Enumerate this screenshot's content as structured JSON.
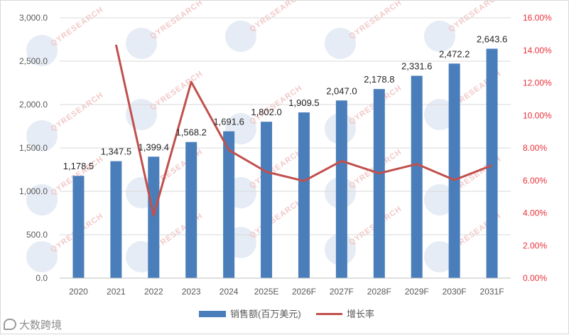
{
  "chart_data": {
    "type": "bar+line",
    "categories": [
      "2020",
      "2021",
      "2022",
      "2023",
      "2024",
      "2025E",
      "2026F",
      "2027F",
      "2028F",
      "2029F",
      "2030F",
      "2031F"
    ],
    "series": [
      {
        "name": "销售额(百万美元)",
        "type": "bar",
        "axis": "left",
        "color": "#4a7ebb",
        "values": [
          1178.5,
          1347.5,
          1399.4,
          1568.2,
          1691.6,
          1802.0,
          1909.5,
          2047.0,
          2178.8,
          2331.6,
          2472.2,
          2643.6
        ],
        "labels": [
          "1,178.5",
          "1,347.5",
          "1,399.4",
          "1,568.2",
          "1,691.6",
          "1,802.0",
          "1,909.5",
          "2,047.0",
          "2,178.8",
          "2,331.6",
          "2,472.2",
          "2,643.6"
        ]
      },
      {
        "name": "增长率",
        "type": "line",
        "axis": "right",
        "color": "#c0504d",
        "values": [
          null,
          14.34,
          3.85,
          12.06,
          7.87,
          6.53,
          5.97,
          7.2,
          6.44,
          7.01,
          6.03,
          6.93
        ]
      }
    ],
    "y_left": {
      "min": 0,
      "max": 3000,
      "ticks": [
        0,
        500,
        1000,
        1500,
        2000,
        2500,
        3000
      ],
      "tick_labels": [
        "0.0",
        "500.0",
        "1,000.0",
        "1,500.0",
        "2,000.0",
        "2,500.0",
        "3,000.0"
      ]
    },
    "y_right": {
      "min": 0,
      "max": 16,
      "ticks": [
        0,
        2,
        4,
        6,
        8,
        10,
        12,
        14,
        16
      ],
      "tick_labels": [
        "0.00%",
        "2.00%",
        "4.00%",
        "6.00%",
        "8.00%",
        "10.00%",
        "12.00%",
        "14.00%",
        "16.00%"
      ],
      "color": "#e8313a"
    },
    "grid": "horizontal",
    "legend": "bottom-center"
  },
  "watermark": {
    "text": "QYRESEARCH",
    "repeats": 7
  },
  "footer": {
    "source_text": "大数跨境"
  }
}
